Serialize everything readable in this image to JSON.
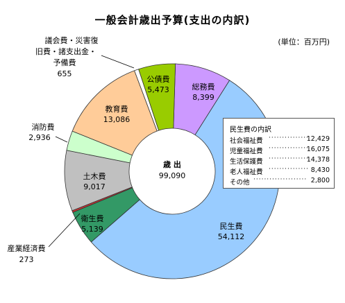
{
  "title": "一般会計歳出予算(支出の内訳)",
  "unit_label": "(単位：百万円)",
  "center_label": "歳 出",
  "center_value": "99,090",
  "chart_data": {
    "type": "pie",
    "donut": true,
    "title": "一般会計歳出予算(支出の内訳)",
    "unit": "百万円",
    "total": 99090,
    "slices": [
      {
        "name": "民生費",
        "value": 54112,
        "value_label": "54,112",
        "color": "#99ccff"
      },
      {
        "name": "衛生費",
        "value": 5139,
        "value_label": "5,139",
        "color": "#339966"
      },
      {
        "name": "産業経済費",
        "value": 273,
        "value_label": "273",
        "color": "#cc3333"
      },
      {
        "name": "土木費",
        "value": 9017,
        "value_label": "9,017",
        "color": "#c0c0c0"
      },
      {
        "name": "消防費",
        "value": 2936,
        "value_label": "2,936",
        "color": "#ccffcc"
      },
      {
        "name": "教育費",
        "value": 13086,
        "value_label": "13,086",
        "color": "#ffcc99"
      },
      {
        "name": "議会費・災害復旧費・諸支出金・予備費",
        "value": 655,
        "value_label": "655",
        "color": "#ffffff"
      },
      {
        "name": "公債費",
        "value": 5473,
        "value_label": "5,473",
        "color": "#99cc00"
      },
      {
        "name": "総務費",
        "value": 8399,
        "value_label": "8,399",
        "color": "#cc99ff"
      }
    ],
    "breakdown": {
      "title": "民生費の内訳",
      "rows": [
        {
          "name": "社会福祉費",
          "value": 12429,
          "value_label": "12,429"
        },
        {
          "name": "児童福祉費",
          "value": 16075,
          "value_label": "16,075"
        },
        {
          "name": "生活保護費",
          "value": 14378,
          "value_label": "14,378"
        },
        {
          "name": "老人福祉費",
          "value": 8430,
          "value_label": "8,430"
        },
        {
          "name": "その他",
          "value": 2800,
          "value_label": "2,800"
        }
      ]
    }
  },
  "outside_labels": {
    "misc_line1": "議会費・災害復",
    "misc_line2": "旧費・諸支出金・",
    "misc_line3": "予備費"
  }
}
